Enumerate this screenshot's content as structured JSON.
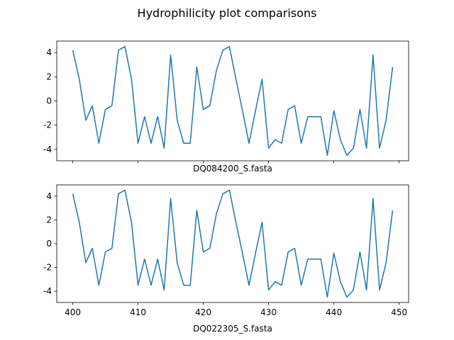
{
  "figure_title": "Hydrophilicity plot comparisons",
  "colors": {
    "line": "#1f77b4",
    "axes": "#000000",
    "background": "#ffffff"
  },
  "chart_data": [
    {
      "type": "line",
      "title": "",
      "xlabel": "DQ084200_S.fasta",
      "ylabel": "",
      "xlim": [
        397.55,
        451.45
      ],
      "ylim": [
        -4.95,
        4.95
      ],
      "xticks": [
        400,
        410,
        420,
        430,
        440,
        450
      ],
      "xtick_labels_visible": false,
      "yticks": [
        -4,
        -2,
        0,
        2,
        4
      ],
      "grid": false,
      "series": [
        {
          "x": [
            400,
            401,
            402,
            403,
            404,
            405,
            406,
            407,
            408,
            409,
            410,
            411,
            412,
            413,
            414,
            415,
            416,
            417,
            418,
            419,
            420,
            421,
            422,
            423,
            424,
            425,
            426,
            427,
            428,
            429,
            430,
            431,
            432,
            433,
            434,
            435,
            436,
            437,
            438,
            439,
            440,
            441,
            442,
            443,
            444,
            445,
            446,
            447,
            448,
            449
          ],
          "values": [
            4.2,
            1.8,
            -1.6,
            -0.4,
            -3.5,
            -0.7,
            -0.4,
            4.2,
            4.5,
            1.8,
            -3.5,
            -1.3,
            -3.5,
            -1.3,
            -3.9,
            3.8,
            -1.6,
            -3.5,
            -3.5,
            2.8,
            -0.7,
            -0.4,
            2.5,
            4.2,
            4.5,
            1.8,
            -0.8,
            -3.5,
            -0.8,
            1.8,
            -3.9,
            -3.2,
            -3.5,
            -0.7,
            -0.4,
            -3.5,
            -1.3,
            -1.3,
            -1.3,
            -4.5,
            -0.8,
            -3.2,
            -4.5,
            -3.9,
            -0.7,
            -3.9,
            3.8,
            -3.9,
            -1.6,
            2.8
          ]
        }
      ]
    },
    {
      "type": "line",
      "title": "",
      "xlabel": "DQ022305_S.fasta",
      "ylabel": "",
      "xlim": [
        397.55,
        451.45
      ],
      "ylim": [
        -4.95,
        4.95
      ],
      "xticks": [
        400,
        410,
        420,
        430,
        440,
        450
      ],
      "xtick_labels_visible": true,
      "yticks": [
        -4,
        -2,
        0,
        2,
        4
      ],
      "grid": false,
      "series": [
        {
          "x": [
            400,
            401,
            402,
            403,
            404,
            405,
            406,
            407,
            408,
            409,
            410,
            411,
            412,
            413,
            414,
            415,
            416,
            417,
            418,
            419,
            420,
            421,
            422,
            423,
            424,
            425,
            426,
            427,
            428,
            429,
            430,
            431,
            432,
            433,
            434,
            435,
            436,
            437,
            438,
            439,
            440,
            441,
            442,
            443,
            444,
            445,
            446,
            447,
            448,
            449
          ],
          "values": [
            4.2,
            1.8,
            -1.6,
            -0.4,
            -3.5,
            -0.7,
            -0.4,
            4.2,
            4.5,
            1.8,
            -3.5,
            -1.3,
            -3.5,
            -1.3,
            -3.9,
            3.8,
            -1.6,
            -3.5,
            -3.5,
            2.8,
            -0.7,
            -0.4,
            2.5,
            4.2,
            4.5,
            1.8,
            -0.8,
            -3.5,
            -0.8,
            1.8,
            -3.9,
            -3.2,
            -3.5,
            -0.7,
            -0.4,
            -3.5,
            -1.3,
            -1.3,
            -1.3,
            -4.5,
            -0.8,
            -3.2,
            -4.5,
            -3.9,
            -0.7,
            -3.9,
            3.8,
            -3.9,
            -1.6,
            2.8
          ]
        }
      ]
    }
  ]
}
